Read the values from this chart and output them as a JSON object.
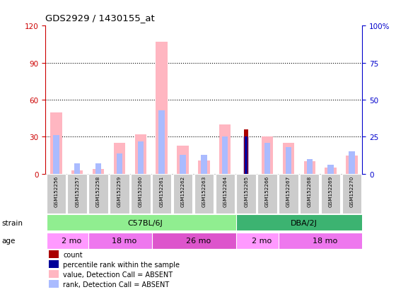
{
  "title": "GDS2929 / 1430155_at",
  "samples": [
    "GSM152256",
    "GSM152257",
    "GSM152258",
    "GSM152259",
    "GSM152260",
    "GSM152261",
    "GSM152262",
    "GSM152263",
    "GSM152264",
    "GSM152265",
    "GSM152266",
    "GSM152267",
    "GSM152268",
    "GSM152269",
    "GSM152270"
  ],
  "count_values": [
    0,
    0,
    0,
    0,
    0,
    0,
    0,
    0,
    0,
    36,
    0,
    0,
    0,
    0,
    0
  ],
  "absent_value": [
    50,
    3,
    4,
    25,
    32,
    107,
    23,
    11,
    40,
    0,
    30,
    25,
    10,
    5,
    15
  ],
  "absent_rank": [
    26,
    7,
    7,
    14,
    22,
    43,
    13,
    13,
    25,
    25,
    21,
    18,
    10,
    6,
    15
  ],
  "rank_present_values": [
    0,
    0,
    0,
    0,
    0,
    0,
    0,
    0,
    0,
    25,
    0,
    0,
    0,
    0,
    0
  ],
  "ylim_left": [
    0,
    120
  ],
  "ylim_right": [
    0,
    100
  ],
  "yticks_left": [
    0,
    30,
    60,
    90,
    120
  ],
  "yticks_right": [
    0,
    25,
    50,
    75,
    100
  ],
  "ytick_labels_left": [
    "0",
    "30",
    "60",
    "90",
    "120"
  ],
  "ytick_labels_right": [
    "0",
    "25",
    "50",
    "75",
    "100%"
  ],
  "strain_groups": [
    {
      "label": "C57BL/6J",
      "start": 0,
      "end": 9,
      "color": "#90EE90"
    },
    {
      "label": "DBA/2J",
      "start": 9,
      "end": 15,
      "color": "#3CB371"
    }
  ],
  "age_groups": [
    {
      "label": "2 mo",
      "start": 0,
      "end": 2,
      "color": "#FF99FF"
    },
    {
      "label": "18 mo",
      "start": 2,
      "end": 5,
      "color": "#EE77EE"
    },
    {
      "label": "26 mo",
      "start": 5,
      "end": 9,
      "color": "#DD55CC"
    },
    {
      "label": "2 mo",
      "start": 9,
      "end": 11,
      "color": "#FF99FF"
    },
    {
      "label": "18 mo",
      "start": 11,
      "end": 15,
      "color": "#EE77EE"
    }
  ],
  "count_color": "#AA0000",
  "rank_color": "#000099",
  "absent_value_color": "#FFB6C1",
  "absent_rank_color": "#AABBFF",
  "bg_color": "#FFFFFF",
  "label_color_left": "#CC0000",
  "label_color_right": "#0000CC",
  "sample_bg": "#CCCCCC"
}
